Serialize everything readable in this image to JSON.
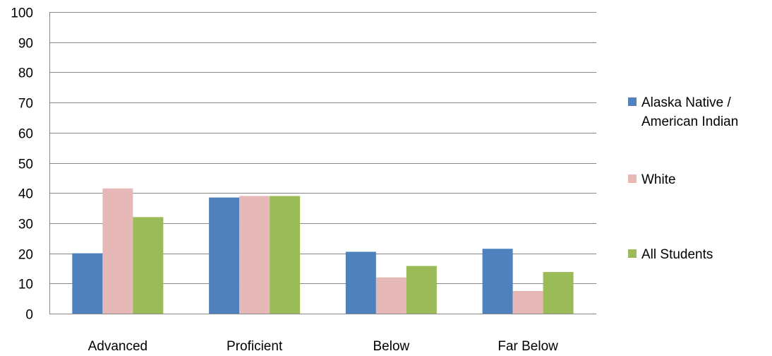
{
  "chart_data": {
    "type": "bar",
    "categories": [
      "Advanced",
      "Proficient",
      "Below",
      "Far Below"
    ],
    "series": [
      {
        "name": "Alaska Native / American Indian",
        "color": "#4F81BD",
        "values": [
          20,
          38.5,
          20.5,
          21.5
        ]
      },
      {
        "name": "White",
        "color": "#E6B9B8",
        "values": [
          41.5,
          39,
          12,
          7.5
        ]
      },
      {
        "name": "All Students",
        "color": "#9BBB59",
        "values": [
          32,
          39,
          15.8,
          13.8
        ]
      }
    ],
    "title": "",
    "xlabel": "",
    "ylabel": "",
    "ylim": [
      0,
      100
    ],
    "yticks": [
      "0",
      "10",
      "20",
      "30",
      "40",
      "50",
      "60",
      "70",
      "80",
      "90",
      "100"
    ],
    "grid": true,
    "legend_position": "right"
  }
}
